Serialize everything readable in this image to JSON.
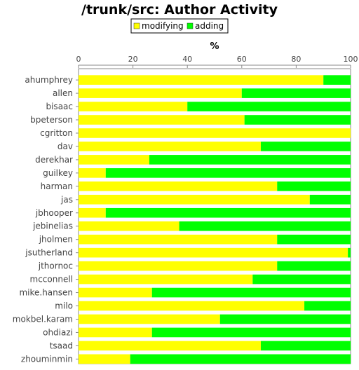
{
  "chart_data": {
    "type": "bar",
    "orientation": "horizontal",
    "stacked": true,
    "title": "/trunk/src: Author Activity",
    "xlabel": "%",
    "ylabel": "",
    "xlim": [
      0,
      100
    ],
    "x_ticks": [
      "0",
      "20",
      "40",
      "60",
      "80",
      "100"
    ],
    "x_axis_position": "top",
    "legend_position": "top",
    "grid": false,
    "categories": [
      "ahumphrey",
      "allen",
      "bisaac",
      "bpeterson",
      "cgritton",
      "dav",
      "derekhar",
      "guilkey",
      "harman",
      "jas",
      "jbhooper",
      "jebinelias",
      "jholmen",
      "jsutherland",
      "jthornoc",
      "mcconnell",
      "mike.hansen",
      "milo",
      "mokbel.karam",
      "ohdiazi",
      "tsaad",
      "zhouminmin"
    ],
    "series": [
      {
        "name": "modifying",
        "color": "#ffff00",
        "values": [
          90,
          60,
          40,
          61,
          100,
          67,
          26,
          10,
          73,
          85,
          10,
          37,
          73,
          99,
          73,
          64,
          27,
          83,
          52,
          27,
          67,
          19
        ]
      },
      {
        "name": "adding",
        "color": "#00ff00",
        "values": [
          10,
          40,
          60,
          39,
          0,
          33,
          74,
          90,
          27,
          15,
          90,
          63,
          27,
          1,
          27,
          36,
          73,
          17,
          48,
          73,
          33,
          81
        ]
      }
    ]
  }
}
